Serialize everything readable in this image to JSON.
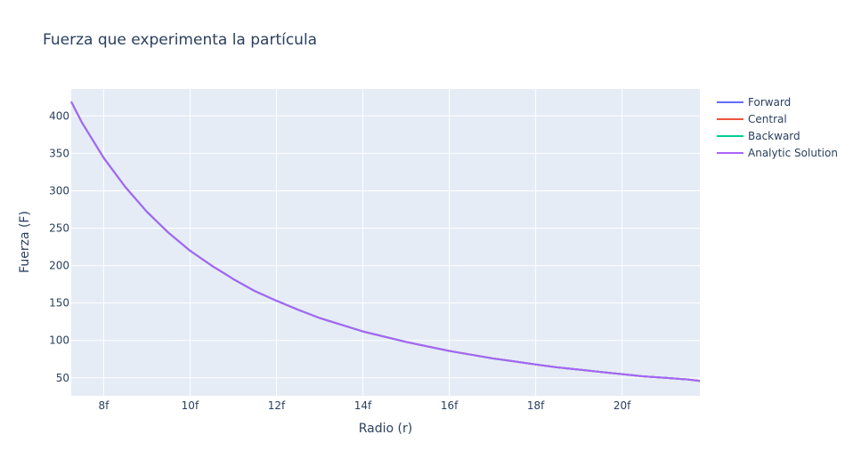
{
  "chart_data": {
    "type": "line",
    "title": "Fuerza que experimenta la partícula",
    "xlabel": "Radio (r)",
    "ylabel": "Fuerza (F)",
    "xlim": [
      7.25,
      21.8
    ],
    "ylim": [
      26,
      436
    ],
    "x_ticks": [
      8,
      10,
      12,
      14,
      16,
      18,
      20
    ],
    "x_tick_labels": [
      "8f",
      "10f",
      "12f",
      "14f",
      "16f",
      "18f",
      "20f"
    ],
    "y_ticks": [
      50,
      100,
      150,
      200,
      250,
      300,
      350,
      400
    ],
    "y_tick_labels": [
      "50",
      "100",
      "150",
      "200",
      "250",
      "300",
      "350",
      "400"
    ],
    "grid": true,
    "legend_position": "right",
    "x": [
      7.25,
      7.5,
      8,
      8.5,
      9,
      9.5,
      10,
      10.5,
      11,
      11.5,
      12,
      12.5,
      13,
      13.5,
      14,
      14.5,
      15,
      15.5,
      16,
      16.5,
      17,
      17.5,
      18,
      18.5,
      19,
      19.5,
      20,
      20.5,
      21,
      21.5,
      21.8
    ],
    "series": [
      {
        "name": "Forward",
        "color": "#636efa",
        "values": [
          419,
          391,
          344,
          305,
          272,
          244,
          220,
          200,
          182,
          166,
          153,
          141,
          130,
          121,
          112,
          105,
          98,
          92,
          86,
          81,
          76,
          72,
          68,
          64,
          61,
          58,
          55,
          52,
          50,
          48,
          46
        ]
      },
      {
        "name": "Central",
        "color": "#ef553b",
        "values": [
          419,
          391,
          344,
          305,
          272,
          244,
          220,
          200,
          182,
          166,
          153,
          141,
          130,
          121,
          112,
          105,
          98,
          92,
          86,
          81,
          76,
          72,
          68,
          64,
          61,
          58,
          55,
          52,
          50,
          48,
          46
        ]
      },
      {
        "name": "Backward",
        "color": "#00cc96",
        "values": [
          419,
          391,
          344,
          305,
          272,
          244,
          220,
          200,
          182,
          166,
          153,
          141,
          130,
          121,
          112,
          105,
          98,
          92,
          86,
          81,
          76,
          72,
          68,
          64,
          61,
          58,
          55,
          52,
          50,
          48,
          46
        ]
      },
      {
        "name": "Analytic Solution",
        "color": "#ab63fa",
        "values": [
          419,
          391,
          344,
          305,
          272,
          244,
          220,
          200,
          182,
          166,
          153,
          141,
          130,
          121,
          112,
          105,
          98,
          92,
          86,
          81,
          76,
          72,
          68,
          64,
          61,
          58,
          55,
          52,
          50,
          48,
          46
        ]
      }
    ]
  },
  "colors": {
    "plot_background": "#e5ecf6",
    "gridline": "#ffffff",
    "text": "#2a3f5f"
  }
}
